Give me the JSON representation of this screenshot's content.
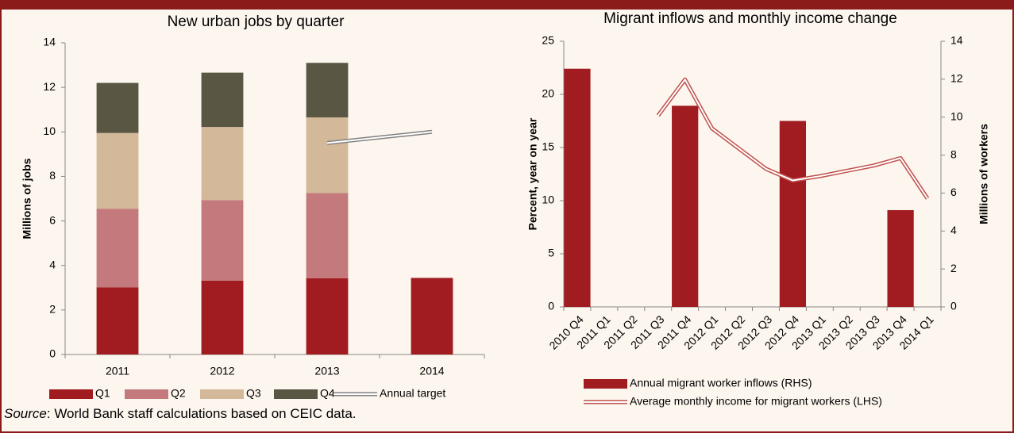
{
  "chart_data": [
    {
      "type": "bar",
      "stacked": true,
      "title": "New urban jobs by quarter",
      "ylabel": "Millions of jobs",
      "categories": [
        "2011",
        "2012",
        "2013",
        "2014"
      ],
      "series": [
        {
          "name": "Q1",
          "type": "bar",
          "color": "#a01c20",
          "values": [
            3.02,
            3.32,
            3.42,
            3.44
          ]
        },
        {
          "name": "Q2",
          "type": "bar",
          "color": "#c47a7c",
          "values": [
            3.53,
            3.61,
            3.83,
            null
          ]
        },
        {
          "name": "Q3",
          "type": "bar",
          "color": "#d4b89a",
          "values": [
            3.4,
            3.29,
            3.4,
            null
          ]
        },
        {
          "name": "Q4",
          "type": "bar",
          "color": "#595643",
          "values": [
            2.25,
            2.44,
            2.45,
            null
          ]
        },
        {
          "name": "Annual target",
          "type": "line",
          "color": "#808080",
          "values": [
            null,
            null,
            9.5,
            10
          ]
        }
      ],
      "ylim": [
        0,
        14
      ],
      "yticks": [
        0,
        2,
        4,
        6,
        8,
        10,
        12,
        14
      ],
      "grid": false,
      "legend": "bottom"
    },
    {
      "type": "bar",
      "title": "Migrant inflows and monthly income change",
      "ylabel": "Percent, year on year",
      "y2label": "Millions of workers",
      "categories": [
        "2010 Q4",
        "2011 Q1",
        "2011 Q2",
        "2011 Q3",
        "2011 Q4",
        "2012 Q1",
        "2012 Q2",
        "2012 Q3",
        "2012 Q4",
        "2013 Q1",
        "2013 Q2",
        "2013 Q3",
        "2013 Q4",
        "2014 Q1"
      ],
      "series": [
        {
          "name": "Annual migrant worker inflows (RHS)",
          "type": "bar",
          "axis": "y2",
          "color": "#a01c20",
          "values": [
            12.55,
            null,
            null,
            null,
            10.6,
            null,
            null,
            null,
            9.8,
            null,
            null,
            null,
            5.1,
            null
          ]
        },
        {
          "name": "Average monthly income for migrant workers (LHS)",
          "type": "line",
          "color": "#c0504d",
          "values": [
            null,
            null,
            null,
            18.0,
            21.4,
            16.8,
            14.9,
            13.0,
            11.9,
            12.3,
            12.8,
            13.3,
            14.0,
            10.2
          ]
        }
      ],
      "ylim": [
        0,
        25
      ],
      "yticks": [
        0,
        5,
        10,
        15,
        20,
        25
      ],
      "y2lim": [
        0,
        14
      ],
      "y2ticks": [
        0,
        2,
        4,
        6,
        8,
        10,
        12,
        14
      ],
      "grid": false,
      "legend": "bottom"
    }
  ],
  "source": {
    "label": "Source",
    "text": ": World Bank staff calculations based on CEIC data."
  }
}
